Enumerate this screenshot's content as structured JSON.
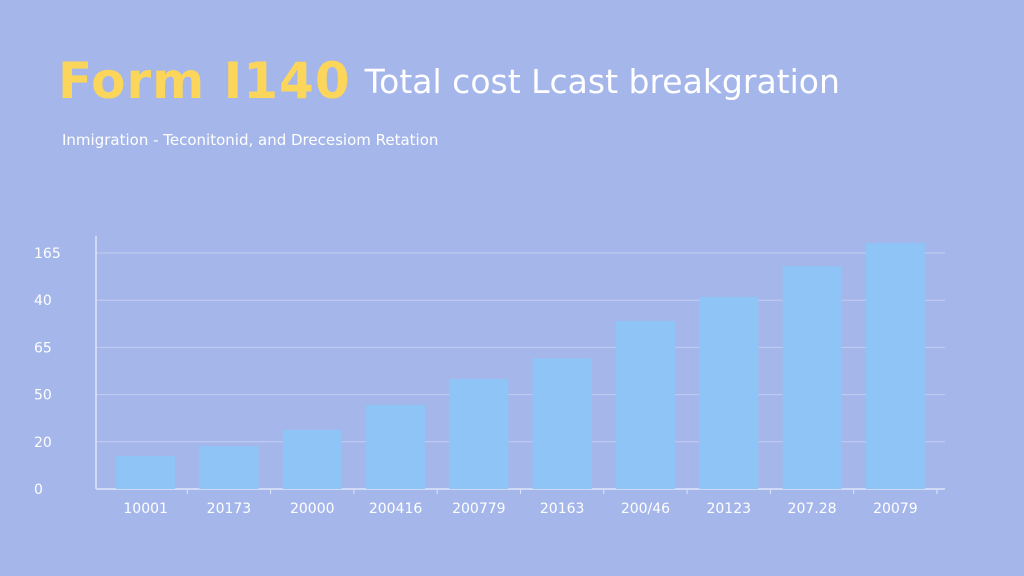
{
  "header": {
    "title": "Form I140",
    "subtitle_inline": "Total cost Lcast breakgration",
    "subtitle": "Inmigration  -  Teconitonid, and Drecesiom Retation"
  },
  "colors": {
    "background": "#a5b6ea",
    "bar": "#8fc4f6",
    "title": "#fcd65b",
    "grid": "#c3cdf3"
  },
  "chart_data": {
    "type": "bar",
    "title": "Form I140 Total cost Lcast breakgration",
    "categories": [
      "10001",
      "20173",
      "20000",
      "200416",
      "200779",
      "20163",
      "200/46",
      "20123",
      "207.28",
      "20079"
    ],
    "values": [
      0.7,
      0.91,
      1.25,
      1.78,
      2.33,
      2.77,
      3.56,
      4.07,
      4.72,
      5.21
    ],
    "yticks": [
      {
        "v": 0,
        "label": "0"
      },
      {
        "v": 1,
        "label": "20"
      },
      {
        "v": 2,
        "label": "50"
      },
      {
        "v": 3,
        "label": "65"
      },
      {
        "v": 4,
        "label": "40"
      },
      {
        "v": 5,
        "label": "165"
      }
    ],
    "ylim": [
      0,
      5.36
    ],
    "grid": true,
    "xlabel": "",
    "ylabel": ""
  }
}
